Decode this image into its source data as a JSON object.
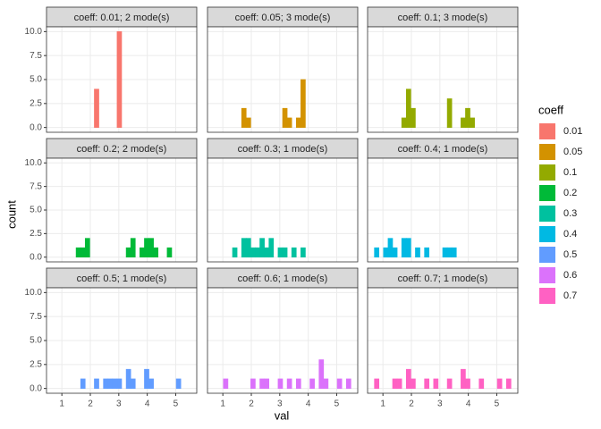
{
  "x_label": "val",
  "y_label": "count",
  "legend": {
    "title": "coeff",
    "labels": [
      "0.01",
      "0.05",
      "0.1",
      "0.2",
      "0.3",
      "0.4",
      "0.5",
      "0.6",
      "0.7"
    ]
  },
  "chart_data": [
    {
      "type": "histogram",
      "title": "coeff: 0.01; 2 mode(s)",
      "color": "#F8766D",
      "bins": [
        0.7,
        0.86,
        1.02,
        1.18,
        1.34,
        1.5,
        1.66,
        1.82,
        1.98,
        2.14,
        2.3,
        2.46,
        2.62,
        2.78,
        2.94,
        3.1,
        3.26,
        3.42,
        3.58,
        3.74,
        3.9,
        4.06,
        4.22,
        4.38,
        4.54,
        4.7,
        4.86,
        5.02,
        5.18,
        5.34,
        5.5
      ],
      "counts": [
        0,
        0,
        0,
        0,
        0,
        0,
        0,
        0,
        0,
        4,
        0,
        0,
        0,
        0,
        10,
        0,
        0,
        0,
        0,
        0,
        0,
        0,
        0,
        0,
        0,
        0,
        0,
        0,
        0,
        0
      ],
      "xlim": [
        0.46,
        5.74
      ],
      "ylim": [
        -0.5,
        10.5
      ],
      "xticks": [
        1,
        2,
        3,
        4,
        5
      ],
      "yticks": [
        {
          "value": 0,
          "label": "0.0"
        },
        {
          "value": 2.5,
          "label": "2.5"
        },
        {
          "value": 5,
          "label": "5.0"
        },
        {
          "value": 7.5,
          "label": "7.5"
        },
        {
          "value": 10,
          "label": "10.0"
        }
      ],
      "grid": true
    },
    {
      "type": "histogram",
      "title": "coeff: 0.05; 3 mode(s)",
      "color": "#D39200",
      "bins": [
        0.7,
        0.86,
        1.02,
        1.18,
        1.34,
        1.5,
        1.66,
        1.82,
        1.98,
        2.14,
        2.3,
        2.46,
        2.62,
        2.78,
        2.94,
        3.1,
        3.26,
        3.42,
        3.58,
        3.74,
        3.9,
        4.06,
        4.22,
        4.38,
        4.54,
        4.7,
        4.86,
        5.02,
        5.18,
        5.34,
        5.5
      ],
      "counts": [
        0,
        0,
        0,
        0,
        0,
        0,
        2,
        1,
        0,
        0,
        0,
        0,
        0,
        0,
        0,
        2,
        1,
        0,
        1,
        5,
        0,
        0,
        0,
        0,
        0,
        0,
        0,
        0,
        0,
        0
      ],
      "xlim": [
        0.46,
        5.74
      ],
      "ylim": [
        -0.5,
        10.5
      ],
      "xticks": [
        1,
        2,
        3,
        4,
        5
      ],
      "yticks": [
        {
          "value": 0,
          "label": "0.0"
        },
        {
          "value": 2.5,
          "label": "2.5"
        },
        {
          "value": 5,
          "label": "5.0"
        },
        {
          "value": 7.5,
          "label": "7.5"
        },
        {
          "value": 10,
          "label": "10.0"
        }
      ],
      "grid": true
    },
    {
      "type": "histogram",
      "title": "coeff: 0.1; 3 mode(s)",
      "color": "#93AA00",
      "bins": [
        0.7,
        0.86,
        1.02,
        1.18,
        1.34,
        1.5,
        1.66,
        1.82,
        1.98,
        2.14,
        2.3,
        2.46,
        2.62,
        2.78,
        2.94,
        3.1,
        3.26,
        3.42,
        3.58,
        3.74,
        3.9,
        4.06,
        4.22,
        4.38,
        4.54,
        4.7,
        4.86,
        5.02,
        5.18,
        5.34,
        5.5
      ],
      "counts": [
        0,
        0,
        0,
        0,
        0,
        0,
        1,
        4,
        2,
        0,
        0,
        0,
        0,
        0,
        0,
        0,
        3,
        0,
        0,
        1,
        2,
        1,
        0,
        0,
        0,
        0,
        0,
        0,
        0,
        0
      ],
      "xlim": [
        0.46,
        5.74
      ],
      "ylim": [
        -0.5,
        10.5
      ],
      "xticks": [
        1,
        2,
        3,
        4,
        5
      ],
      "yticks": [
        {
          "value": 0,
          "label": "0.0"
        },
        {
          "value": 2.5,
          "label": "2.5"
        },
        {
          "value": 5,
          "label": "5.0"
        },
        {
          "value": 7.5,
          "label": "7.5"
        },
        {
          "value": 10,
          "label": "10.0"
        }
      ],
      "grid": true
    },
    {
      "type": "histogram",
      "title": "coeff: 0.2; 2 mode(s)",
      "color": "#00BA38",
      "bins": [
        0.7,
        0.86,
        1.02,
        1.18,
        1.34,
        1.5,
        1.66,
        1.82,
        1.98,
        2.14,
        2.3,
        2.46,
        2.62,
        2.78,
        2.94,
        3.1,
        3.26,
        3.42,
        3.58,
        3.74,
        3.9,
        4.06,
        4.22,
        4.38,
        4.54,
        4.7,
        4.86,
        5.02,
        5.18,
        5.34,
        5.5
      ],
      "counts": [
        0,
        0,
        0,
        0,
        0,
        1,
        1,
        2,
        0,
        0,
        0,
        0,
        0,
        0,
        0,
        0,
        1,
        2,
        0,
        1,
        2,
        2,
        1,
        0,
        0,
        1,
        0,
        0,
        0,
        0
      ],
      "xlim": [
        0.46,
        5.74
      ],
      "ylim": [
        -0.5,
        10.5
      ],
      "xticks": [
        1,
        2,
        3,
        4,
        5
      ],
      "yticks": [
        {
          "value": 0,
          "label": "0.0"
        },
        {
          "value": 2.5,
          "label": "2.5"
        },
        {
          "value": 5,
          "label": "5.0"
        },
        {
          "value": 7.5,
          "label": "7.5"
        },
        {
          "value": 10,
          "label": "10.0"
        }
      ],
      "grid": true
    },
    {
      "type": "histogram",
      "title": "coeff: 0.3; 1 mode(s)",
      "color": "#00C19F",
      "bins": [
        0.7,
        0.86,
        1.02,
        1.18,
        1.34,
        1.5,
        1.66,
        1.82,
        1.98,
        2.14,
        2.3,
        2.46,
        2.62,
        2.78,
        2.94,
        3.1,
        3.26,
        3.42,
        3.58,
        3.74,
        3.9,
        4.06,
        4.22,
        4.38,
        4.54,
        4.7,
        4.86,
        5.02,
        5.18,
        5.34,
        5.5
      ],
      "counts": [
        0,
        0,
        0,
        0,
        1,
        0,
        2,
        2,
        1,
        1,
        2,
        1,
        2,
        0,
        1,
        1,
        0,
        1,
        0,
        1,
        0,
        0,
        0,
        0,
        0,
        0,
        0,
        0,
        0,
        0
      ],
      "xlim": [
        0.46,
        5.74
      ],
      "ylim": [
        -0.5,
        10.5
      ],
      "xticks": [
        1,
        2,
        3,
        4,
        5
      ],
      "yticks": [
        {
          "value": 0,
          "label": "0.0"
        },
        {
          "value": 2.5,
          "label": "2.5"
        },
        {
          "value": 5,
          "label": "5.0"
        },
        {
          "value": 7.5,
          "label": "7.5"
        },
        {
          "value": 10,
          "label": "10.0"
        }
      ],
      "grid": true
    },
    {
      "type": "histogram",
      "title": "coeff: 0.4; 1 mode(s)",
      "color": "#00B9E3",
      "bins": [
        0.7,
        0.86,
        1.02,
        1.18,
        1.34,
        1.5,
        1.66,
        1.82,
        1.98,
        2.14,
        2.3,
        2.46,
        2.62,
        2.78,
        2.94,
        3.1,
        3.26,
        3.42,
        3.58,
        3.74,
        3.9,
        4.06,
        4.22,
        4.38,
        4.54,
        4.7,
        4.86,
        5.02,
        5.18,
        5.34,
        5.5
      ],
      "counts": [
        1,
        0,
        1,
        2,
        1,
        0,
        2,
        2,
        0,
        1,
        0,
        1,
        0,
        0,
        0,
        1,
        1,
        1,
        0,
        0,
        0,
        0,
        0,
        0,
        0,
        0,
        0,
        0,
        0,
        0
      ],
      "xlim": [
        0.46,
        5.74
      ],
      "ylim": [
        -0.5,
        10.5
      ],
      "xticks": [
        1,
        2,
        3,
        4,
        5
      ],
      "yticks": [
        {
          "value": 0,
          "label": "0.0"
        },
        {
          "value": 2.5,
          "label": "2.5"
        },
        {
          "value": 5,
          "label": "5.0"
        },
        {
          "value": 7.5,
          "label": "7.5"
        },
        {
          "value": 10,
          "label": "10.0"
        }
      ],
      "grid": true
    },
    {
      "type": "histogram",
      "title": "coeff: 0.5; 1 mode(s)",
      "color": "#619CFF",
      "bins": [
        0.7,
        0.86,
        1.02,
        1.18,
        1.34,
        1.5,
        1.66,
        1.82,
        1.98,
        2.14,
        2.3,
        2.46,
        2.62,
        2.78,
        2.94,
        3.1,
        3.26,
        3.42,
        3.58,
        3.74,
        3.9,
        4.06,
        4.22,
        4.38,
        4.54,
        4.7,
        4.86,
        5.02,
        5.18,
        5.34,
        5.5
      ],
      "counts": [
        0,
        0,
        0,
        0,
        0,
        0,
        1,
        0,
        0,
        1,
        0,
        1,
        1,
        1,
        1,
        0,
        2,
        1,
        0,
        0,
        2,
        1,
        0,
        0,
        0,
        0,
        0,
        1,
        0,
        0
      ],
      "xlim": [
        0.46,
        5.74
      ],
      "ylim": [
        -0.5,
        10.5
      ],
      "xticks": [
        1,
        2,
        3,
        4,
        5
      ],
      "yticks": [
        {
          "value": 0,
          "label": "0.0"
        },
        {
          "value": 2.5,
          "label": "2.5"
        },
        {
          "value": 5,
          "label": "5.0"
        },
        {
          "value": 7.5,
          "label": "7.5"
        },
        {
          "value": 10,
          "label": "10.0"
        }
      ],
      "grid": true
    },
    {
      "type": "histogram",
      "title": "coeff: 0.6; 1 mode(s)",
      "color": "#DB72FB",
      "bins": [
        0.7,
        0.86,
        1.02,
        1.18,
        1.34,
        1.5,
        1.66,
        1.82,
        1.98,
        2.14,
        2.3,
        2.46,
        2.62,
        2.78,
        2.94,
        3.1,
        3.26,
        3.42,
        3.58,
        3.74,
        3.9,
        4.06,
        4.22,
        4.38,
        4.54,
        4.7,
        4.86,
        5.02,
        5.18,
        5.34,
        5.5
      ],
      "counts": [
        0,
        0,
        1,
        0,
        0,
        0,
        0,
        0,
        1,
        0,
        1,
        1,
        0,
        0,
        1,
        0,
        1,
        0,
        1,
        0,
        0,
        1,
        0,
        3,
        1,
        0,
        0,
        1,
        0,
        1
      ],
      "xlim": [
        0.46,
        5.74
      ],
      "ylim": [
        -0.5,
        10.5
      ],
      "xticks": [
        1,
        2,
        3,
        4,
        5
      ],
      "yticks": [
        {
          "value": 0,
          "label": "0.0"
        },
        {
          "value": 2.5,
          "label": "2.5"
        },
        {
          "value": 5,
          "label": "5.0"
        },
        {
          "value": 7.5,
          "label": "7.5"
        },
        {
          "value": 10,
          "label": "10.0"
        }
      ],
      "grid": true
    },
    {
      "type": "histogram",
      "title": "coeff: 0.7; 1 mode(s)",
      "color": "#FF61C3",
      "bins": [
        0.7,
        0.86,
        1.02,
        1.18,
        1.34,
        1.5,
        1.66,
        1.82,
        1.98,
        2.14,
        2.3,
        2.46,
        2.62,
        2.78,
        2.94,
        3.1,
        3.26,
        3.42,
        3.58,
        3.74,
        3.9,
        4.06,
        4.22,
        4.38,
        4.54,
        4.7,
        4.86,
        5.02,
        5.18,
        5.34,
        5.5
      ],
      "counts": [
        1,
        0,
        0,
        0,
        1,
        1,
        0,
        2,
        1,
        0,
        0,
        1,
        0,
        1,
        0,
        0,
        1,
        0,
        0,
        2,
        1,
        0,
        0,
        1,
        0,
        0,
        0,
        1,
        0,
        1
      ],
      "xlim": [
        0.46,
        5.74
      ],
      "ylim": [
        -0.5,
        10.5
      ],
      "xticks": [
        1,
        2,
        3,
        4,
        5
      ],
      "yticks": [
        {
          "value": 0,
          "label": "0.0"
        },
        {
          "value": 2.5,
          "label": "2.5"
        },
        {
          "value": 5,
          "label": "5.0"
        },
        {
          "value": 7.5,
          "label": "7.5"
        },
        {
          "value": 10,
          "label": "10.0"
        }
      ],
      "grid": true
    }
  ]
}
